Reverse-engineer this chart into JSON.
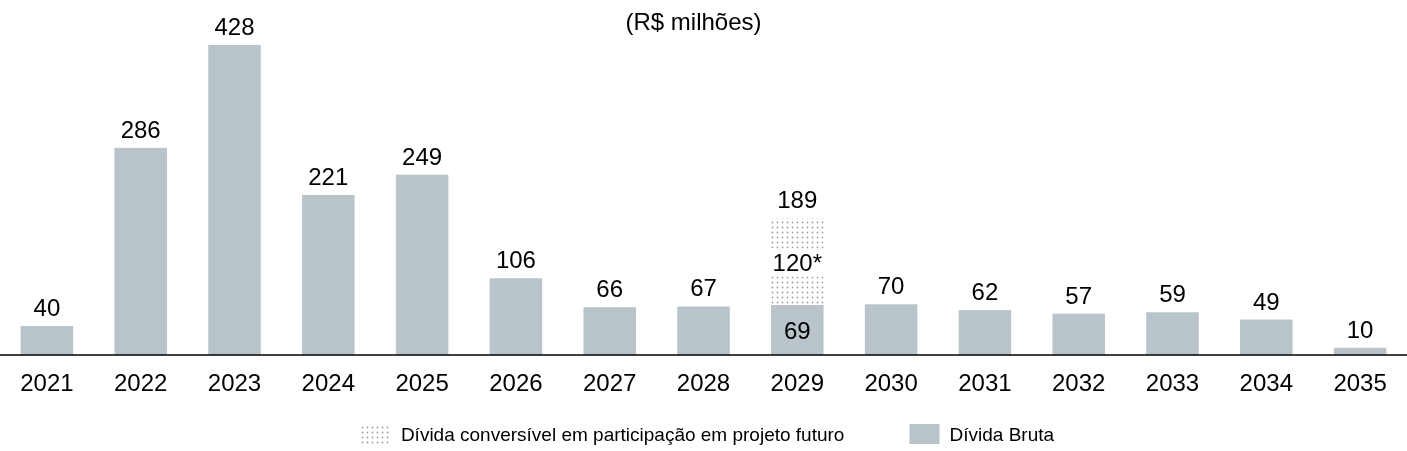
{
  "chart_data": {
    "type": "bar",
    "title": "(R$ milhões)",
    "stacked": true,
    "legend": "bottom",
    "categories": [
      "2021",
      "2022",
      "2023",
      "2024",
      "2025",
      "2026",
      "2027",
      "2028",
      "2029",
      "2030",
      "2031",
      "2032",
      "2033",
      "2034",
      "2035"
    ],
    "series": [
      {
        "name": "Dívida Bruta",
        "color": "#b9c4ca",
        "values": [
          40,
          286,
          428,
          221,
          249,
          106,
          66,
          67,
          69,
          70,
          62,
          57,
          59,
          49,
          10
        ],
        "value_labels": [
          "40",
          "286",
          "428",
          "221",
          "249",
          "106",
          "66",
          "67",
          "69",
          "70",
          "62",
          "57",
          "59",
          "49",
          "10"
        ]
      },
      {
        "name": "Dívida conversível em participação em projeto futuro",
        "color": "#a0a0a0",
        "values": [
          null,
          null,
          null,
          null,
          null,
          null,
          null,
          null,
          120,
          null,
          null,
          null,
          null,
          null,
          null
        ],
        "value_labels": [
          null,
          null,
          null,
          null,
          null,
          null,
          null,
          null,
          "120*",
          null,
          null,
          null,
          null,
          null,
          null
        ]
      }
    ],
    "totals": [
      null,
      null,
      null,
      null,
      null,
      null,
      null,
      null,
      "189",
      null,
      null,
      null,
      null,
      null,
      null
    ]
  }
}
